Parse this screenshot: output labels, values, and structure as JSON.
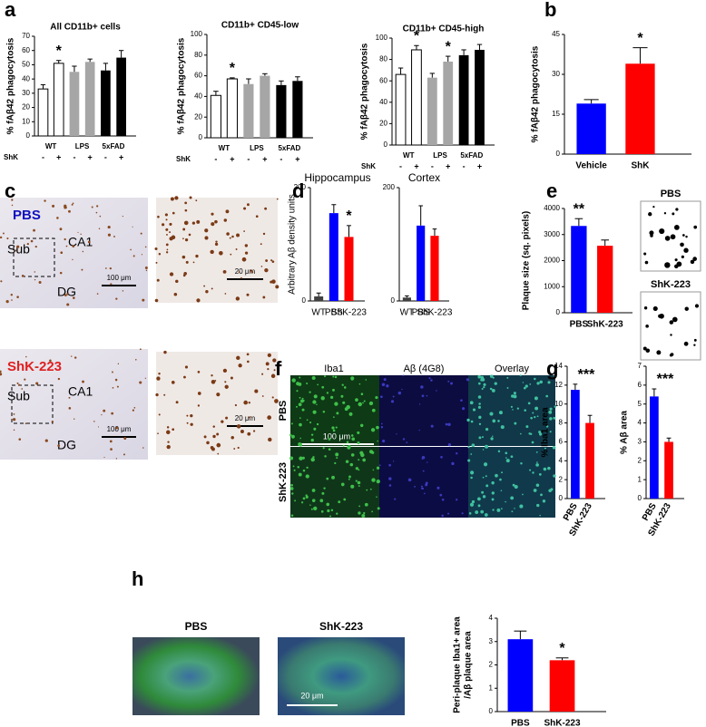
{
  "panel_labels": [
    "a",
    "b",
    "c",
    "d",
    "e",
    "f",
    "g",
    "h"
  ],
  "chart_data": [
    {
      "type": "bar",
      "title": "All  CD11b+ cells",
      "ylabel": "% fAβ42 phagocytosis",
      "groups": [
        "WT",
        "LPS",
        "5xFAD"
      ],
      "row_label": "ShK",
      "categories": [
        "-",
        "+",
        "-",
        "+",
        "-",
        "+"
      ],
      "values": [
        33,
        51,
        45,
        52,
        46,
        55
      ],
      "errors": [
        3,
        2,
        4,
        2,
        5,
        5
      ],
      "colors": [
        "#ffffff",
        "#ffffff",
        "#a6a6a6",
        "#a6a6a6",
        "#000000",
        "#000000"
      ],
      "ylim": [
        0,
        70
      ],
      "yticks": [
        0,
        10,
        20,
        30,
        40,
        50,
        60,
        70
      ],
      "annotations": [
        "*"
      ]
    },
    {
      "type": "bar",
      "title": "CD11b+ CD45-low",
      "ylabel": "% fAβ42 phagocytosis",
      "groups": [
        "WT",
        "LPS",
        "5xFAD"
      ],
      "row_label": "ShK",
      "categories": [
        "-",
        "+",
        "-",
        "+",
        "-",
        "+"
      ],
      "values": [
        41,
        57,
        52,
        60,
        51,
        55
      ],
      "errors": [
        4,
        1,
        5,
        2,
        4,
        4
      ],
      "colors": [
        "#ffffff",
        "#ffffff",
        "#a6a6a6",
        "#a6a6a6",
        "#000000",
        "#000000"
      ],
      "ylim": [
        0,
        100
      ],
      "yticks": [
        0,
        20,
        40,
        60,
        80,
        100
      ],
      "annotations": [
        "*"
      ]
    },
    {
      "type": "bar",
      "title": "CD11b+ CD45-high",
      "ylabel": "% fAβ42 phagocytosis",
      "groups": [
        "WT",
        "LPS",
        "5xFAD"
      ],
      "row_label": "ShK",
      "categories": [
        "-",
        "+",
        "-",
        "+",
        "-",
        "+"
      ],
      "values": [
        66,
        89,
        63,
        78,
        84,
        89
      ],
      "errors": [
        6,
        4,
        4,
        5,
        5,
        5
      ],
      "colors": [
        "#ffffff",
        "#ffffff",
        "#a6a6a6",
        "#a6a6a6",
        "#000000",
        "#000000"
      ],
      "ylim": [
        0,
        100
      ],
      "yticks": [
        0,
        20,
        40,
        60,
        80,
        100
      ],
      "annotations": [
        "*",
        "*"
      ]
    },
    {
      "type": "bar",
      "ylabel": "% fAβ42 phagocytosis",
      "categories": [
        "Vehicle",
        "ShK"
      ],
      "values": [
        19,
        34
      ],
      "errors": [
        1.5,
        6
      ],
      "colors": [
        "#0000ff",
        "#ff0000"
      ],
      "ylim": [
        0,
        45
      ],
      "yticks": [
        0,
        15,
        30,
        45
      ],
      "annotations": [
        "*"
      ]
    },
    {
      "type": "bar",
      "title": "Hippocampus",
      "ylabel": "Arbitrary Aβ density units",
      "categories": [
        "WT",
        "PBS",
        "ShK-223"
      ],
      "values": [
        8,
        155,
        113
      ],
      "errors": [
        6,
        15,
        20
      ],
      "colors": [
        "#404040",
        "#0000ff",
        "#ff0000"
      ],
      "ylim": [
        0,
        200
      ],
      "yticks": [
        0,
        200
      ],
      "annotations": [
        "*"
      ]
    },
    {
      "type": "bar",
      "title": "Cortex",
      "categories": [
        "WT",
        "PBS",
        "ShK-223"
      ],
      "values": [
        6,
        133,
        115
      ],
      "errors": [
        3,
        35,
        12
      ],
      "colors": [
        "#404040",
        "#0000ff",
        "#ff0000"
      ],
      "ylim": [
        0,
        200
      ],
      "yticks": [
        0,
        200
      ]
    },
    {
      "type": "bar",
      "ylabel": "Plaque size (sq. pixels)",
      "categories": [
        "PBS",
        "ShK-223"
      ],
      "values": [
        3330,
        2570
      ],
      "errors": [
        280,
        220
      ],
      "colors": [
        "#0000ff",
        "#ff0000"
      ],
      "ylim": [
        0,
        4000
      ],
      "yticks": [
        0,
        1000,
        2000,
        3000,
        4000
      ],
      "annotations": [
        "**"
      ]
    },
    {
      "type": "bar",
      "ylabel": "% Iba1 area",
      "categories": [
        "PBS",
        "ShK-223"
      ],
      "values": [
        11.5,
        8
      ],
      "errors": [
        0.6,
        0.8
      ],
      "colors": [
        "#0000ff",
        "#ff0000"
      ],
      "ylim": [
        0,
        14
      ],
      "yticks": [
        0,
        2,
        4,
        6,
        8,
        10,
        12,
        14
      ],
      "annotations": [
        "***"
      ]
    },
    {
      "type": "bar",
      "ylabel": "% Aβ area",
      "categories": [
        "PBS",
        "ShK-223"
      ],
      "values": [
        5.4,
        3.0
      ],
      "errors": [
        0.4,
        0.2
      ],
      "colors": [
        "#0000ff",
        "#ff0000"
      ],
      "ylim": [
        0,
        7
      ],
      "yticks": [
        0,
        1,
        2,
        3,
        4,
        5,
        6,
        7
      ],
      "annotations": [
        "***"
      ]
    },
    {
      "type": "bar",
      "ylabel": [
        "Peri-plaque Iba1+ area",
        "/Aβ plaque area"
      ],
      "categories": [
        "PBS",
        "ShK-223"
      ],
      "values": [
        3.1,
        2.2
      ],
      "errors": [
        0.35,
        0.1
      ],
      "colors": [
        "#0000ff",
        "#ff0000"
      ],
      "ylim": [
        0,
        4
      ],
      "yticks": [
        0,
        1,
        2,
        3,
        4
      ],
      "annotations": [
        "*"
      ]
    }
  ],
  "images": {
    "c": {
      "pbs_label": "PBS",
      "shk_label": "ShK-223",
      "regions": [
        "Sub",
        "CA1",
        "DG"
      ],
      "scale_large": "100 μm",
      "scale_small": "20 μm"
    },
    "e": {
      "pbs": "PBS",
      "shk": "ShK-223"
    },
    "f": {
      "columns": [
        "Iba1",
        "Aβ (4G8)",
        "Overlay"
      ],
      "rows": [
        "PBS",
        "ShK-223"
      ],
      "scale": "100 μm"
    },
    "h": {
      "columns": [
        "PBS",
        "ShK-223"
      ],
      "scale": "20 μm"
    }
  }
}
